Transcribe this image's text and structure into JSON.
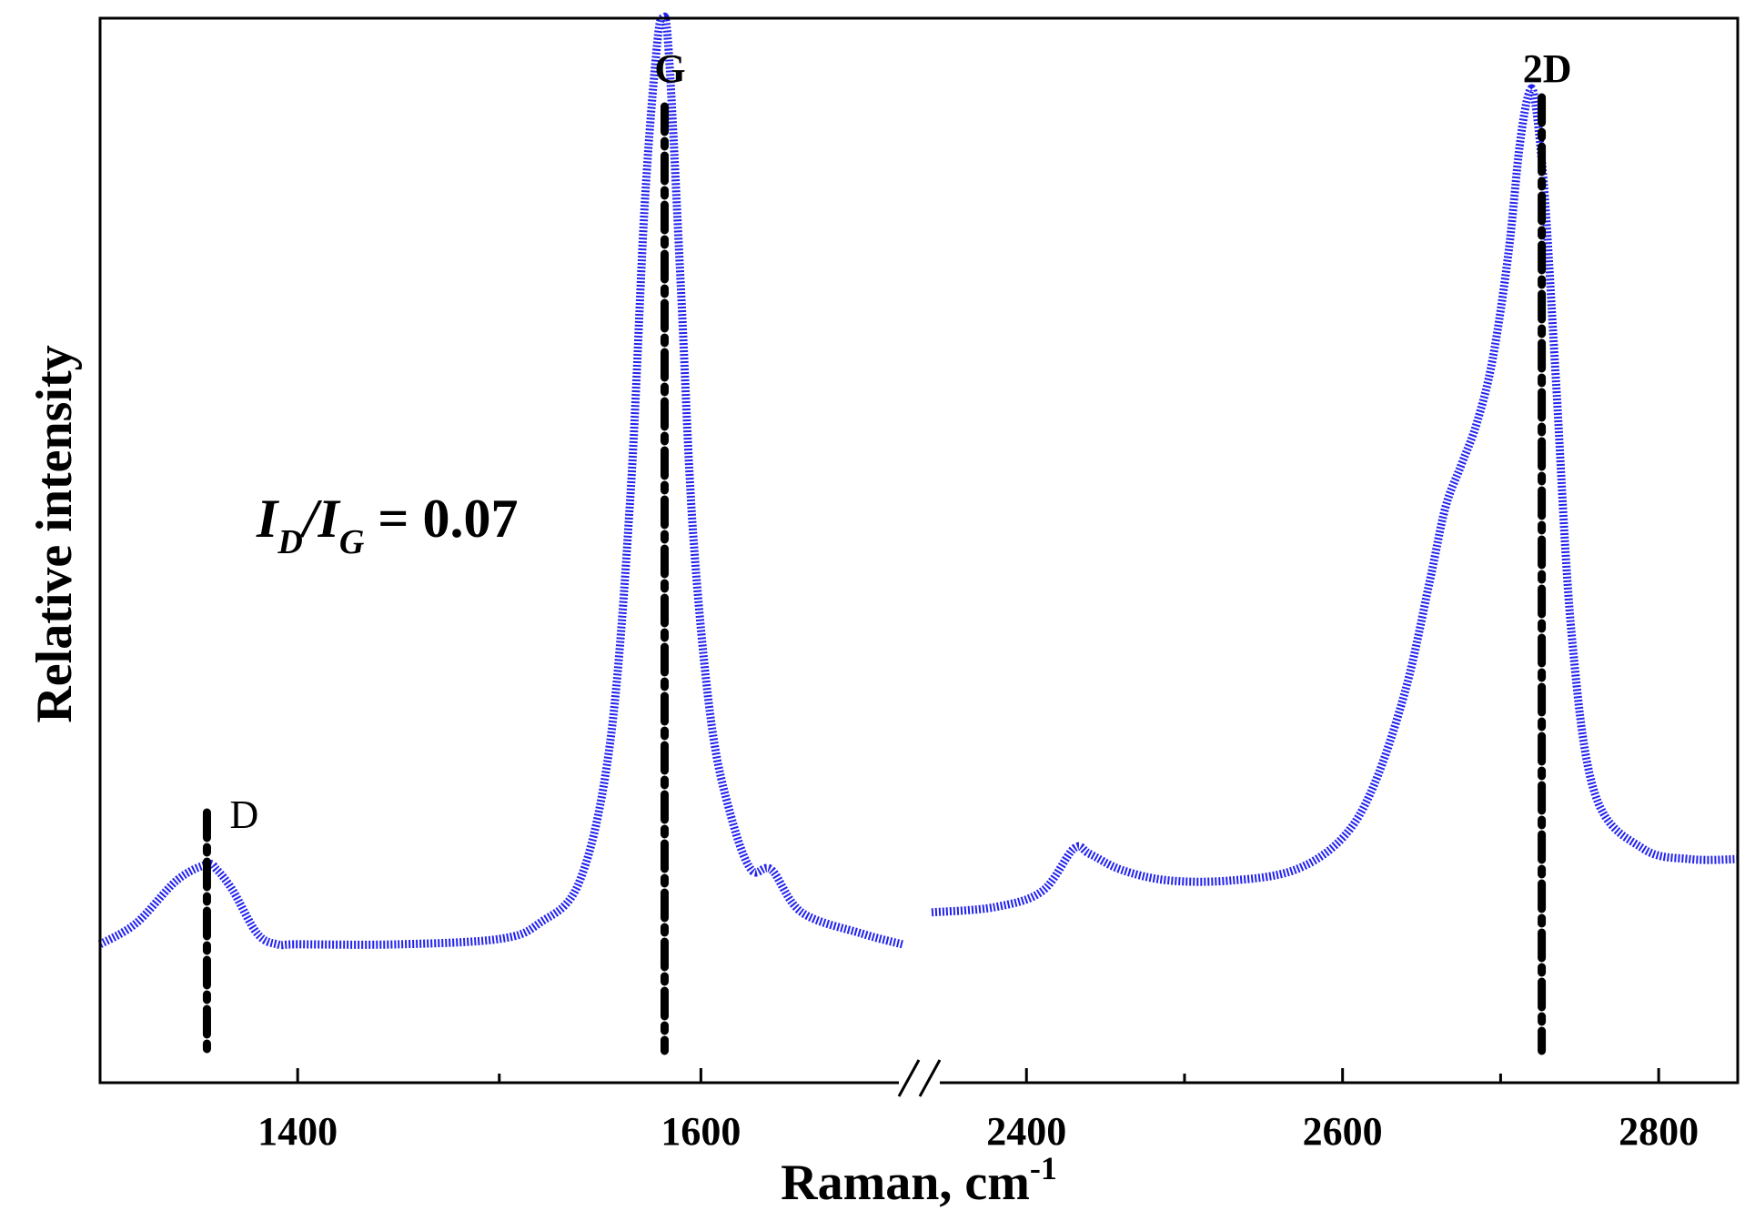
{
  "chart_data": {
    "type": "line",
    "title": "",
    "xlabel": "Raman, cm",
    "xlabel_superscript": "-1",
    "ylabel": "Relative intensity",
    "x_segments": [
      {
        "xlim": [
          1302,
          1700
        ],
        "ticks": [
          1400,
          1500,
          1600
        ],
        "tick_labels": [
          "1400",
          "",
          "1600"
        ]
      },
      {
        "xlim": [
          2340,
          2850
        ],
        "ticks": [
          2400,
          2500,
          2600,
          2700,
          2800
        ],
        "tick_labels": [
          "2400",
          "",
          "2600",
          "",
          "2800"
        ]
      }
    ],
    "axis_break": true,
    "ylim": [
      0,
      1
    ],
    "y_ticks_labeled": false,
    "grid": false,
    "legend": "none",
    "colors": {
      "spectrum": "#2222ee",
      "markers": "#000000",
      "axes": "#000000"
    },
    "series": [
      {
        "segment": 0,
        "x": [
          1302,
          1320,
          1340,
          1355,
          1360,
          1368,
          1380,
          1390,
          1400,
          1450,
          1500,
          1520,
          1540,
          1555,
          1565,
          1572,
          1578,
          1581,
          1584,
          1590,
          1596,
          1605,
          1615,
          1625,
          1635,
          1650,
          1680,
          1700
        ],
        "y": [
          0.13,
          0.15,
          0.19,
          0.205,
          0.2,
          0.18,
          0.14,
          0.13,
          0.13,
          0.13,
          0.135,
          0.15,
          0.19,
          0.32,
          0.55,
          0.82,
          0.97,
          1.0,
          0.97,
          0.75,
          0.52,
          0.34,
          0.25,
          0.2,
          0.2,
          0.16,
          0.14,
          0.13
        ]
      },
      {
        "segment": 1,
        "x": [
          2340,
          2380,
          2410,
          2430,
          2440,
          2460,
          2490,
          2530,
          2570,
          2600,
          2620,
          2640,
          2655,
          2665,
          2675,
          2685,
          2695,
          2705,
          2712,
          2718,
          2722,
          2728,
          2735,
          2745,
          2760,
          2790,
          2820,
          2850
        ],
        "y": [
          0.16,
          0.165,
          0.18,
          0.22,
          0.215,
          0.2,
          0.19,
          0.19,
          0.2,
          0.23,
          0.28,
          0.37,
          0.47,
          0.54,
          0.58,
          0.62,
          0.68,
          0.78,
          0.88,
          0.93,
          0.92,
          0.83,
          0.66,
          0.42,
          0.27,
          0.22,
          0.21,
          0.21
        ]
      }
    ],
    "peak_markers": [
      {
        "label": "D",
        "x": 1355,
        "segment": 0,
        "bold": false
      },
      {
        "label": "G",
        "x": 1582,
        "segment": 0,
        "bold": true
      },
      {
        "label": "2D",
        "x": 2726,
        "segment": 1,
        "bold": true
      }
    ],
    "annotation": {
      "I1": "I",
      "sub1": "D",
      "slash": "/",
      "I2": "I",
      "sub2": "G",
      "value": " = 0.07"
    }
  }
}
